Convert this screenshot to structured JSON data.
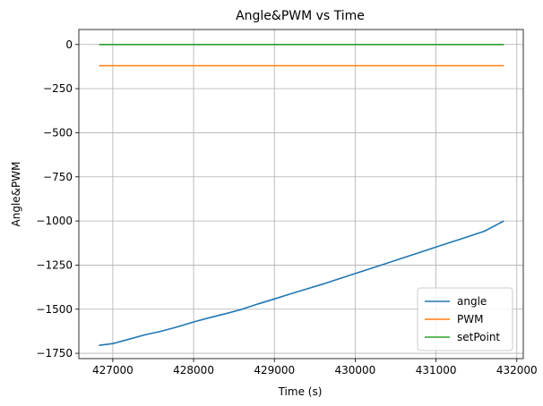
{
  "chart_data": {
    "type": "line",
    "title": "Angle&PWM vs Time",
    "xlabel": "Time (s)",
    "ylabel": "Angle&PWM",
    "xlim": [
      426580,
      432080
    ],
    "ylim": [
      -1780,
      85
    ],
    "xticks": [
      427000,
      428000,
      429000,
      430000,
      431000,
      432000
    ],
    "yticks": [
      0,
      -250,
      -500,
      -750,
      -1000,
      -1250,
      -1500,
      -1750
    ],
    "xtick_labels": [
      "427000",
      "428000",
      "429000",
      "430000",
      "431000",
      "432000"
    ],
    "ytick_labels": [
      "0",
      "−250",
      "−500",
      "−750",
      "−1000",
      "−1250",
      "−1500",
      "−1750"
    ],
    "grid": true,
    "legend_position": "lower-right",
    "series": [
      {
        "name": "angle",
        "color": "#1f77b4",
        "x": [
          426830,
          427000,
          427200,
          427400,
          427600,
          427800,
          428000,
          428200,
          428400,
          428600,
          428800,
          429000,
          429200,
          429400,
          429600,
          429800,
          430000,
          430200,
          430400,
          430600,
          430800,
          431000,
          431200,
          431400,
          431600,
          431840
        ],
        "values": [
          -1705,
          -1695,
          -1670,
          -1645,
          -1625,
          -1600,
          -1572,
          -1548,
          -1525,
          -1500,
          -1470,
          -1442,
          -1413,
          -1385,
          -1358,
          -1328,
          -1298,
          -1268,
          -1238,
          -1208,
          -1178,
          -1148,
          -1118,
          -1088,
          -1058,
          -1000
        ]
      },
      {
        "name": "PWM",
        "color": "#ff7f0e",
        "x": [
          426830,
          431840
        ],
        "values": [
          -120,
          -120
        ]
      },
      {
        "name": "setPoint",
        "color": "#2ca02c",
        "x": [
          426830,
          431840
        ],
        "values": [
          0,
          0
        ]
      }
    ]
  }
}
